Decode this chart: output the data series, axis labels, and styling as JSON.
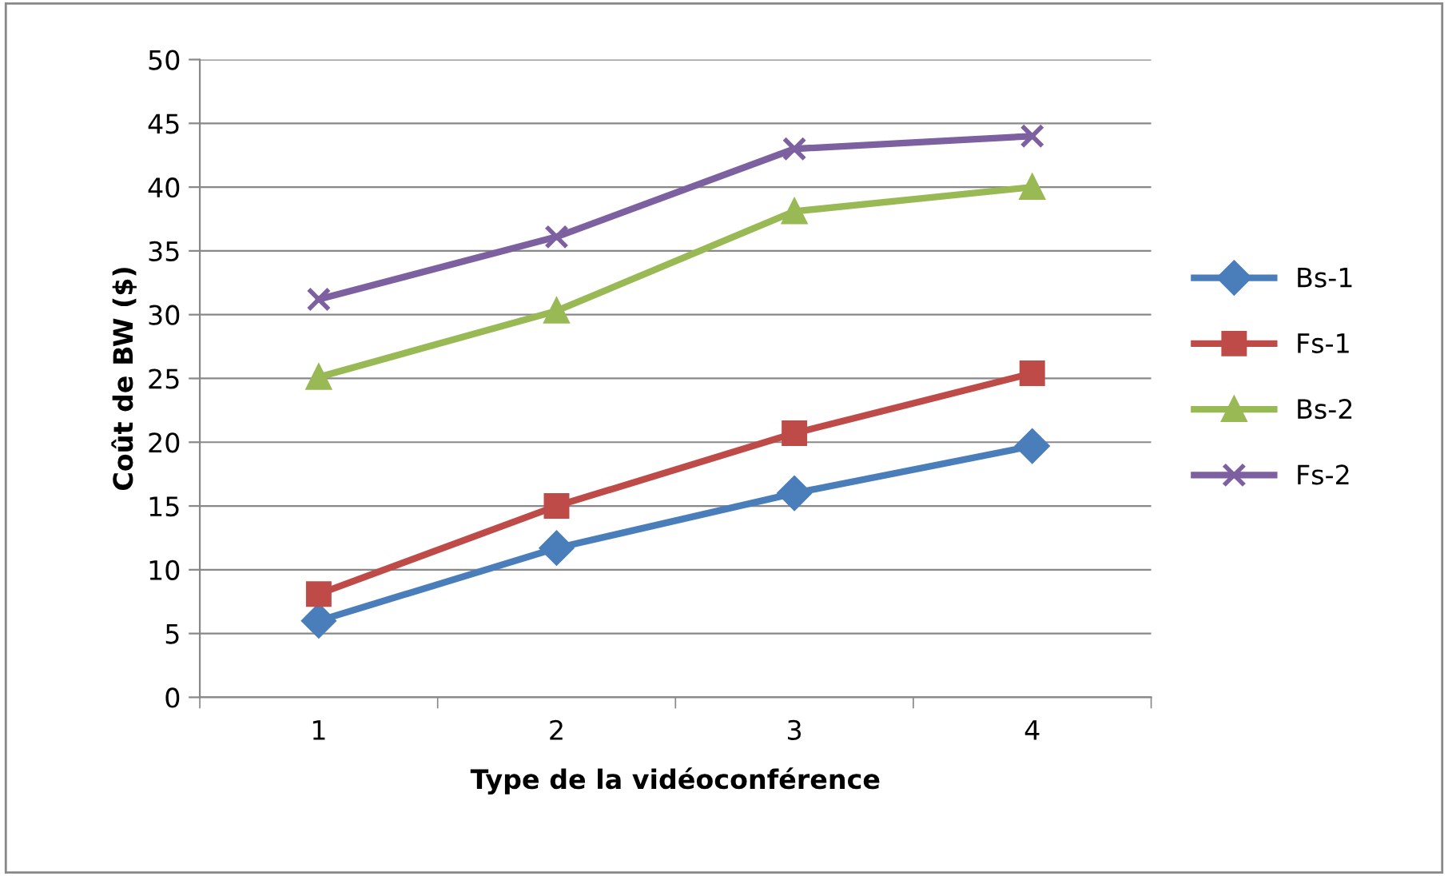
{
  "chart_data": {
    "type": "line",
    "xlabel": "Type de la vidéoconférence",
    "ylabel": "Coût de BW ($)",
    "categories": [
      "1",
      "2",
      "3",
      "4"
    ],
    "series": [
      {
        "name": "Bs-1",
        "color": "#4a7ebb",
        "marker": "diamond",
        "values": [
          6.0,
          11.7,
          16.0,
          19.7
        ]
      },
      {
        "name": "Fs-1",
        "color": "#be4b48",
        "marker": "square",
        "values": [
          8.1,
          15.0,
          20.7,
          25.4
        ]
      },
      {
        "name": "Bs-2",
        "color": "#98b954",
        "marker": "triangle",
        "values": [
          25.1,
          30.3,
          38.1,
          40.0
        ]
      },
      {
        "name": "Fs-2",
        "color": "#7d60a0",
        "marker": "cross",
        "values": [
          31.2,
          36.1,
          43.0,
          44.0
        ]
      }
    ],
    "ylim": [
      0,
      50
    ],
    "yticks": [
      0,
      5,
      10,
      15,
      20,
      25,
      30,
      35,
      40,
      45,
      50
    ],
    "grid": "y",
    "legend": "right",
    "line_style": "solid"
  }
}
